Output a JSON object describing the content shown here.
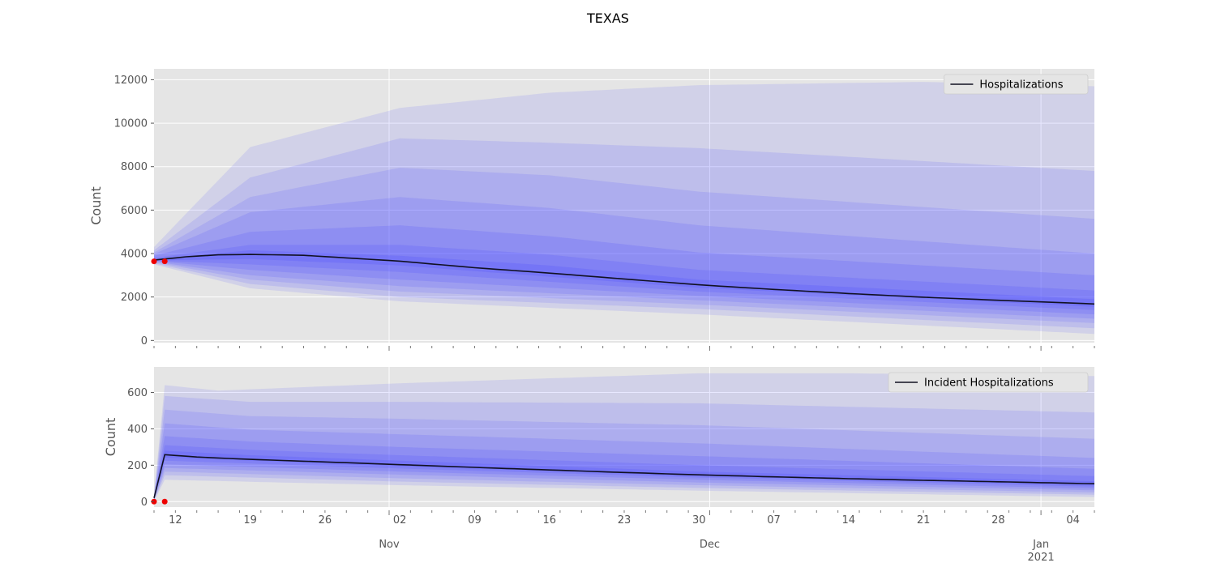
{
  "title": "TEXAS",
  "colors": {
    "panel_bg": "#e5e5e5",
    "grid": "#ffffff",
    "band": "#4c4cff",
    "median": "#111122",
    "observed": "#ee0000",
    "tick": "#555555"
  },
  "chart_data": [
    {
      "type": "area",
      "id": "hospitalizations",
      "ylabel": "Count",
      "ylim": [
        -100,
        12500
      ],
      "yticks": [
        0,
        2000,
        4000,
        6000,
        8000,
        10000,
        12000
      ],
      "x_range": [
        "2020-10-10",
        "2021-01-06"
      ],
      "legend": {
        "label": "Hospitalizations",
        "position": "top-right"
      },
      "grid": true,
      "median": [
        [
          "2020-10-10",
          3700
        ],
        [
          "2020-10-13",
          3850
        ],
        [
          "2020-10-16",
          3940
        ],
        [
          "2020-10-19",
          3960
        ],
        [
          "2020-10-24",
          3920
        ],
        [
          "2020-11-02",
          3650
        ],
        [
          "2020-11-09",
          3350
        ],
        [
          "2020-11-16",
          3100
        ],
        [
          "2020-11-23",
          2830
        ],
        [
          "2020-11-30",
          2560
        ],
        [
          "2020-12-07",
          2350
        ],
        [
          "2020-12-14",
          2160
        ],
        [
          "2020-12-21",
          1990
        ],
        [
          "2020-12-28",
          1850
        ],
        [
          "2021-01-06",
          1680
        ]
      ],
      "quantile_bands": [
        {
          "lower": [
            [
              "2020-10-10",
              3500
            ],
            [
              "2020-10-19",
              2400
            ],
            [
              "2020-11-02",
              1800
            ],
            [
              "2020-11-30",
              1200
            ],
            [
              "2021-01-06",
              300
            ]
          ],
          "upper": [
            [
              "2020-10-10",
              4300
            ],
            [
              "2020-10-19",
              8900
            ],
            [
              "2020-11-02",
              10700
            ],
            [
              "2020-11-16",
              11400
            ],
            [
              "2020-11-30",
              11750
            ],
            [
              "2020-12-21",
              11900
            ],
            [
              "2021-01-06",
              11700
            ]
          ]
        },
        {
          "lower": [
            [
              "2020-10-10",
              3550
            ],
            [
              "2020-10-19",
              2600
            ],
            [
              "2020-11-02",
              2000
            ],
            [
              "2020-11-30",
              1450
            ],
            [
              "2021-01-06",
              560
            ]
          ],
          "upper": [
            [
              "2020-10-10",
              4150
            ],
            [
              "2020-10-19",
              7500
            ],
            [
              "2020-11-02",
              9300
            ],
            [
              "2020-11-16",
              9100
            ],
            [
              "2020-11-30",
              8850
            ],
            [
              "2021-01-06",
              7800
            ]
          ]
        },
        {
          "lower": [
            [
              "2020-10-10",
              3600
            ],
            [
              "2020-10-19",
              2800
            ],
            [
              "2020-11-02",
              2250
            ],
            [
              "2020-11-30",
              1650
            ],
            [
              "2021-01-06",
              800
            ]
          ],
          "upper": [
            [
              "2020-10-10",
              4050
            ],
            [
              "2020-10-19",
              6600
            ],
            [
              "2020-11-02",
              7950
            ],
            [
              "2020-11-16",
              7600
            ],
            [
              "2020-11-30",
              6850
            ],
            [
              "2021-01-06",
              5600
            ]
          ]
        },
        {
          "lower": [
            [
              "2020-10-10",
              3630
            ],
            [
              "2020-10-19",
              3000
            ],
            [
              "2020-11-02",
              2500
            ],
            [
              "2020-11-30",
              1850
            ],
            [
              "2021-01-06",
              1000
            ]
          ],
          "upper": [
            [
              "2020-10-10",
              3980
            ],
            [
              "2020-10-19",
              5900
            ],
            [
              "2020-11-02",
              6600
            ],
            [
              "2020-11-16",
              6100
            ],
            [
              "2020-11-30",
              5300
            ],
            [
              "2021-01-06",
              4000
            ]
          ]
        },
        {
          "lower": [
            [
              "2020-10-10",
              3660
            ],
            [
              "2020-10-19",
              3250
            ],
            [
              "2020-11-02",
              2800
            ],
            [
              "2020-11-30",
              2050
            ],
            [
              "2021-01-06",
              1200
            ]
          ],
          "upper": [
            [
              "2020-10-10",
              3900
            ],
            [
              "2020-10-19",
              5000
            ],
            [
              "2020-11-02",
              5300
            ],
            [
              "2020-11-16",
              4800
            ],
            [
              "2020-11-30",
              4050
            ],
            [
              "2021-01-06",
              3000
            ]
          ]
        },
        {
          "lower": [
            [
              "2020-10-10",
              3680
            ],
            [
              "2020-10-19",
              3500
            ],
            [
              "2020-11-02",
              3150
            ],
            [
              "2020-11-30",
              2250
            ],
            [
              "2021-01-06",
              1400
            ]
          ],
          "upper": [
            [
              "2020-10-10",
              3800
            ],
            [
              "2020-10-19",
              4400
            ],
            [
              "2020-11-02",
              4400
            ],
            [
              "2020-11-16",
              3950
            ],
            [
              "2020-11-30",
              3250
            ],
            [
              "2021-01-06",
              2300
            ]
          ]
        },
        {
          "lower": [
            [
              "2020-10-10",
              3690
            ],
            [
              "2020-10-19",
              3750
            ],
            [
              "2020-11-02",
              3450
            ],
            [
              "2020-11-30",
              2420
            ],
            [
              "2021-01-06",
              1550
            ]
          ],
          "upper": [
            [
              "2020-10-10",
              3730
            ],
            [
              "2020-10-19",
              4150
            ],
            [
              "2020-11-02",
              3900
            ],
            [
              "2020-11-16",
              3450
            ],
            [
              "2020-11-30",
              2800
            ],
            [
              "2021-01-06",
              1900
            ]
          ]
        }
      ],
      "observed": [
        [
          "2020-10-10",
          3640
        ],
        [
          "2020-10-11",
          3640
        ]
      ]
    },
    {
      "type": "area",
      "id": "incident-hospitalizations",
      "ylabel": "Count",
      "ylim": [
        -30,
        740
      ],
      "yticks": [
        0,
        200,
        400,
        600
      ],
      "x_range": [
        "2020-10-10",
        "2021-01-06"
      ],
      "legend": {
        "label": "Incident Hospitalizations",
        "position": "top-right"
      },
      "grid": true,
      "median": [
        [
          "2020-10-10",
          20
        ],
        [
          "2020-10-11",
          258
        ],
        [
          "2020-10-14",
          245
        ],
        [
          "2020-10-19",
          232
        ],
        [
          "2020-10-26",
          218
        ],
        [
          "2020-11-02",
          203
        ],
        [
          "2020-11-09",
          188
        ],
        [
          "2020-11-16",
          174
        ],
        [
          "2020-11-23",
          160
        ],
        [
          "2020-11-30",
          147
        ],
        [
          "2020-12-07",
          136
        ],
        [
          "2020-12-14",
          126
        ],
        [
          "2020-12-21",
          117
        ],
        [
          "2020-12-28",
          109
        ],
        [
          "2021-01-06",
          98
        ]
      ],
      "quantile_bands": [
        {
          "lower": [
            [
              "2020-10-10",
              0
            ],
            [
              "2020-10-11",
              120
            ],
            [
              "2020-11-02",
              90
            ],
            [
              "2020-11-30",
              60
            ],
            [
              "2021-01-06",
              25
            ]
          ],
          "upper": [
            [
              "2020-10-10",
              40
            ],
            [
              "2020-10-11",
              640
            ],
            [
              "2020-10-16",
              610
            ],
            [
              "2020-11-02",
              650
            ],
            [
              "2020-11-30",
              705
            ],
            [
              "2020-12-14",
              705
            ],
            [
              "2021-01-06",
              690
            ]
          ]
        },
        {
          "lower": [
            [
              "2020-10-10",
              5
            ],
            [
              "2020-10-11",
              145
            ],
            [
              "2020-11-02",
              110
            ],
            [
              "2020-11-30",
              75
            ],
            [
              "2021-01-06",
              38
            ]
          ],
          "upper": [
            [
              "2020-10-10",
              30
            ],
            [
              "2020-10-11",
              580
            ],
            [
              "2020-10-19",
              548
            ],
            [
              "2020-11-02",
              548
            ],
            [
              "2020-11-30",
              540
            ],
            [
              "2021-01-06",
              490
            ]
          ]
        },
        {
          "lower": [
            [
              "2020-10-10",
              8
            ],
            [
              "2020-10-11",
              165
            ],
            [
              "2020-11-02",
              128
            ],
            [
              "2020-11-30",
              90
            ],
            [
              "2021-01-06",
              50
            ]
          ],
          "upper": [
            [
              "2020-10-10",
              28
            ],
            [
              "2020-10-11",
              505
            ],
            [
              "2020-10-19",
              470
            ],
            [
              "2020-11-02",
              455
            ],
            [
              "2020-11-30",
              420
            ],
            [
              "2021-01-06",
              345
            ]
          ]
        },
        {
          "lower": [
            [
              "2020-10-10",
              10
            ],
            [
              "2020-10-11",
              185
            ],
            [
              "2020-11-02",
              148
            ],
            [
              "2020-11-30",
              105
            ],
            [
              "2021-01-06",
              62
            ]
          ],
          "upper": [
            [
              "2020-10-10",
              26
            ],
            [
              "2020-10-11",
              430
            ],
            [
              "2020-10-19",
              395
            ],
            [
              "2020-11-02",
              370
            ],
            [
              "2020-11-30",
              320
            ],
            [
              "2021-01-06",
              240
            ]
          ]
        },
        {
          "lower": [
            [
              "2020-10-10",
              12
            ],
            [
              "2020-10-11",
              205
            ],
            [
              "2020-11-02",
              165
            ],
            [
              "2020-11-30",
              120
            ],
            [
              "2021-01-06",
              72
            ]
          ],
          "upper": [
            [
              "2020-10-10",
              24
            ],
            [
              "2020-10-11",
              360
            ],
            [
              "2020-10-19",
              330
            ],
            [
              "2020-11-02",
              300
            ],
            [
              "2020-11-30",
              250
            ],
            [
              "2021-01-06",
              180
            ]
          ]
        },
        {
          "lower": [
            [
              "2020-10-10",
              14
            ],
            [
              "2020-10-11",
              225
            ],
            [
              "2020-11-02",
              182
            ],
            [
              "2020-11-30",
              132
            ],
            [
              "2021-01-06",
              82
            ]
          ],
          "upper": [
            [
              "2020-10-10",
              23
            ],
            [
              "2020-10-11",
              310
            ],
            [
              "2020-10-19",
              285
            ],
            [
              "2020-11-02",
              255
            ],
            [
              "2020-11-30",
              200
            ],
            [
              "2021-01-06",
              140
            ]
          ]
        },
        {
          "lower": [
            [
              "2020-10-10",
              16
            ],
            [
              "2020-10-11",
              242
            ],
            [
              "2020-11-02",
              194
            ],
            [
              "2020-11-30",
              140
            ],
            [
              "2021-01-06",
              90
            ]
          ],
          "upper": [
            [
              "2020-10-10",
              22
            ],
            [
              "2020-10-11",
              280
            ],
            [
              "2020-10-19",
              255
            ],
            [
              "2020-11-02",
              225
            ],
            [
              "2020-11-30",
              165
            ],
            [
              "2021-01-06",
              112
            ]
          ]
        }
      ],
      "observed": [
        [
          "2020-10-10",
          0
        ],
        [
          "2020-10-11",
          0
        ]
      ]
    }
  ],
  "x_axis": {
    "day_ticks": [
      {
        "date": "2020-10-12",
        "label": "12"
      },
      {
        "date": "2020-10-19",
        "label": "19"
      },
      {
        "date": "2020-10-26",
        "label": "26"
      },
      {
        "date": "2020-11-02",
        "label": "02"
      },
      {
        "date": "2020-11-09",
        "label": "09"
      },
      {
        "date": "2020-11-16",
        "label": "16"
      },
      {
        "date": "2020-11-23",
        "label": "23"
      },
      {
        "date": "2020-11-30",
        "label": "30"
      },
      {
        "date": "2020-12-07",
        "label": "07"
      },
      {
        "date": "2020-12-14",
        "label": "14"
      },
      {
        "date": "2020-12-21",
        "label": "21"
      },
      {
        "date": "2020-12-28",
        "label": "28"
      },
      {
        "date": "2021-01-04",
        "label": "04"
      }
    ],
    "month_ticks": [
      {
        "date": "2020-11-01",
        "label": "Nov",
        "year": ""
      },
      {
        "date": "2020-12-01",
        "label": "Dec",
        "year": ""
      },
      {
        "date": "2021-01-01",
        "label": "Jan",
        "year": "2021"
      }
    ]
  }
}
